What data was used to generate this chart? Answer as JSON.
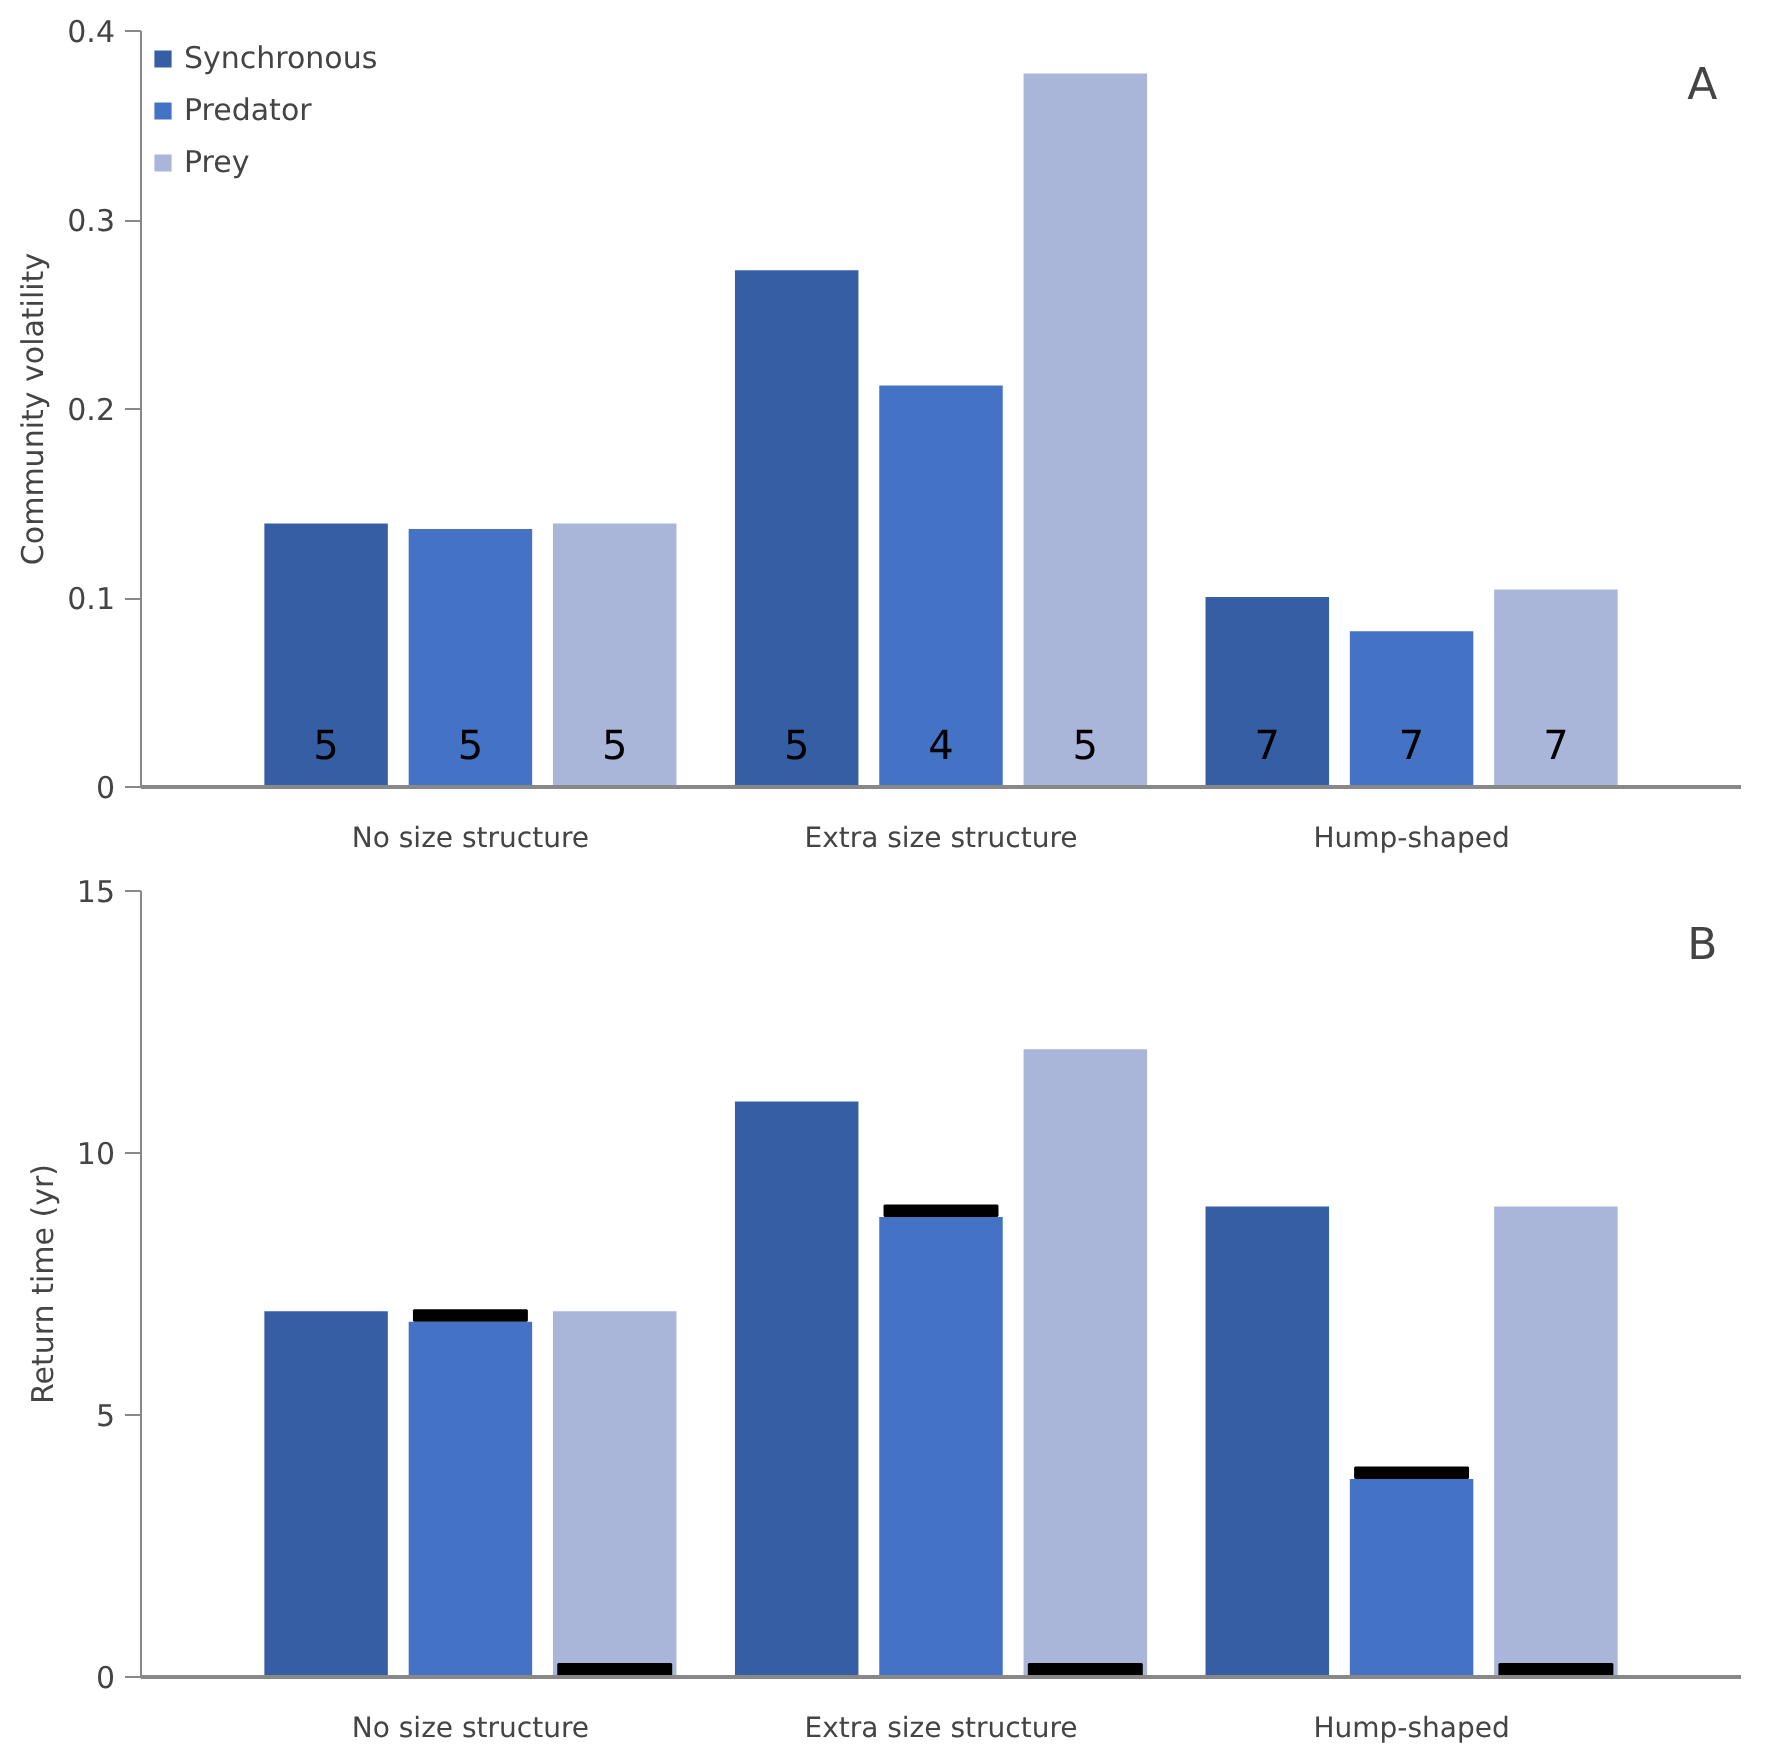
{
  "chart_data": [
    {
      "type": "bar",
      "ylabel": "Community volatility",
      "categories": [
        "No size structure",
        "Extra size structure",
        "Hump-shaped"
      ],
      "ylim": [
        0,
        0.4
      ],
      "yticks": [
        0,
        0.1,
        0.2,
        0.3,
        0.4
      ],
      "legend": "top left",
      "annotations": [
        "A",
        "5",
        "5",
        "5",
        "5",
        "4",
        "5",
        "7",
        "7",
        "7"
      ],
      "series": [
        {
          "name": "Synchronous",
          "color": "#365ea4",
          "values": [
            0.14,
            0.274,
            0.101
          ]
        },
        {
          "name": "Predator",
          "color": "#4472c4",
          "values": [
            0.137,
            0.213,
            0.083
          ]
        },
        {
          "name": "Prey",
          "color": "#a9b6da",
          "values": [
            0.14,
            0.378,
            0.105
          ]
        }
      ]
    },
    {
      "type": "bar",
      "ylabel": "Return time (yr)",
      "categories": [
        "No size structure",
        "Extra size structure",
        "Hump-shaped"
      ],
      "ylim": [
        0,
        15
      ],
      "yticks": [
        0,
        5,
        10,
        15
      ],
      "annotations": [
        "B"
      ],
      "series": [
        {
          "color": "#365ea4",
          "values": [
            7,
            11,
            9
          ]
        },
        {
          "color": "#4472c4",
          "values": [
            6.8,
            8.8,
            3.8
          ]
        },
        {
          "color": "#000000",
          "base": [
            6.8,
            8.8,
            3.8
          ],
          "values": [
            0.2,
            0.2,
            0.2
          ]
        },
        {
          "color": "#a9b6da",
          "values": [
            7,
            12,
            9
          ]
        },
        {
          "color": "#000000",
          "base": [
            0,
            0,
            0
          ],
          "values": [
            0.25,
            0.25,
            0.25
          ]
        }
      ]
    }
  ]
}
